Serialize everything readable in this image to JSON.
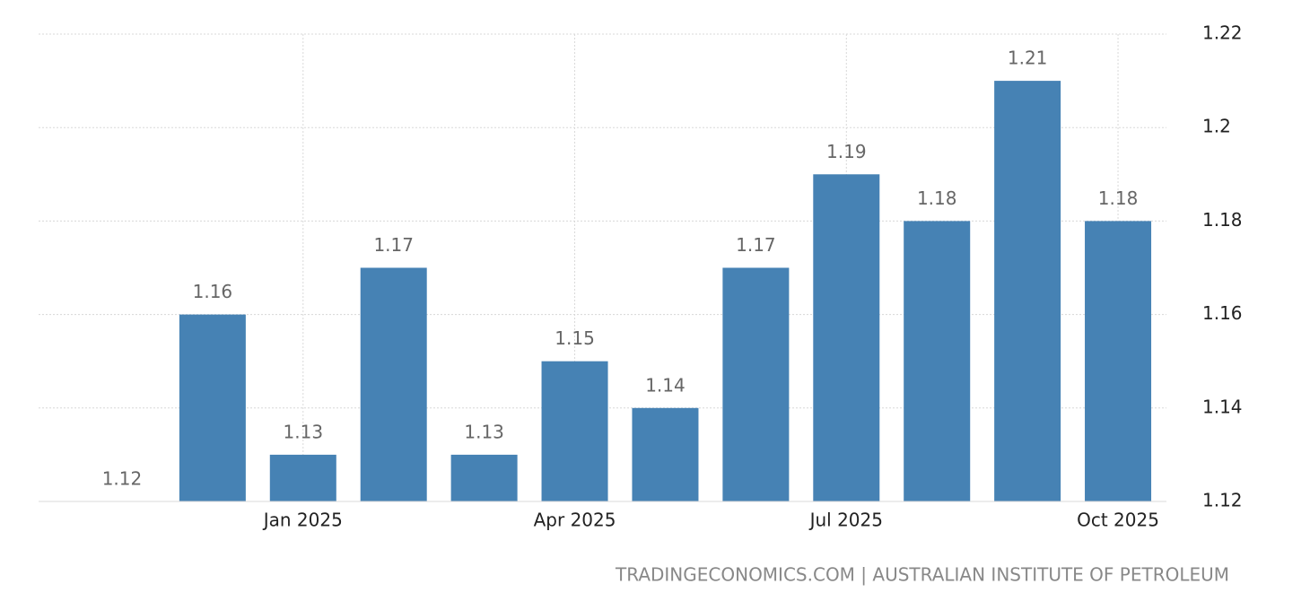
{
  "chart_data": {
    "type": "bar",
    "categories": [
      null,
      null,
      "Jan 2025",
      null,
      null,
      "Apr 2025",
      null,
      null,
      "Jul 2025",
      null,
      null,
      "Oct 2025"
    ],
    "values": [
      1.12,
      1.16,
      1.13,
      1.17,
      1.13,
      1.15,
      1.14,
      1.17,
      1.19,
      1.18,
      1.21,
      1.18
    ],
    "color": "#4682b4",
    "ylim": [
      1.12,
      1.22
    ],
    "yticks": [
      1.12,
      1.14,
      1.16,
      1.18,
      1.2,
      1.22
    ],
    "grid": true,
    "source": "TRADINGECONOMICS.COM | AUSTRALIAN INSTITUTE OF PETROLEUM"
  }
}
